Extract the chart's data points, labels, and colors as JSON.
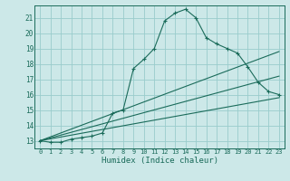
{
  "title": "",
  "xlabel": "Humidex (Indice chaleur)",
  "ylabel": "",
  "background_color": "#cce8e8",
  "grid_color": "#99cccc",
  "line_color": "#1a6b5a",
  "xlim": [
    -0.5,
    23.5
  ],
  "ylim": [
    12.5,
    21.8
  ],
  "yticks": [
    13,
    14,
    15,
    16,
    17,
    18,
    19,
    20,
    21
  ],
  "xticks": [
    0,
    1,
    2,
    3,
    4,
    5,
    6,
    7,
    8,
    9,
    10,
    11,
    12,
    13,
    14,
    15,
    16,
    17,
    18,
    19,
    20,
    21,
    22,
    23
  ],
  "main_series": [
    [
      0,
      13.0
    ],
    [
      1,
      12.9
    ],
    [
      2,
      12.9
    ],
    [
      3,
      13.1
    ],
    [
      4,
      13.2
    ],
    [
      5,
      13.3
    ],
    [
      6,
      13.5
    ],
    [
      7,
      14.8
    ],
    [
      8,
      15.0
    ],
    [
      9,
      17.7
    ],
    [
      10,
      18.3
    ],
    [
      11,
      19.0
    ],
    [
      12,
      20.8
    ],
    [
      13,
      21.3
    ],
    [
      14,
      21.55
    ],
    [
      15,
      21.0
    ],
    [
      16,
      19.7
    ],
    [
      17,
      19.3
    ],
    [
      18,
      19.0
    ],
    [
      19,
      18.7
    ],
    [
      20,
      17.8
    ],
    [
      21,
      16.8
    ],
    [
      22,
      16.2
    ],
    [
      23,
      16.0
    ]
  ],
  "line1": [
    [
      0,
      13.0
    ],
    [
      23,
      15.8
    ]
  ],
  "line2": [
    [
      0,
      13.0
    ],
    [
      23,
      17.2
    ]
  ],
  "line3": [
    [
      0,
      13.0
    ],
    [
      23,
      18.8
    ]
  ]
}
